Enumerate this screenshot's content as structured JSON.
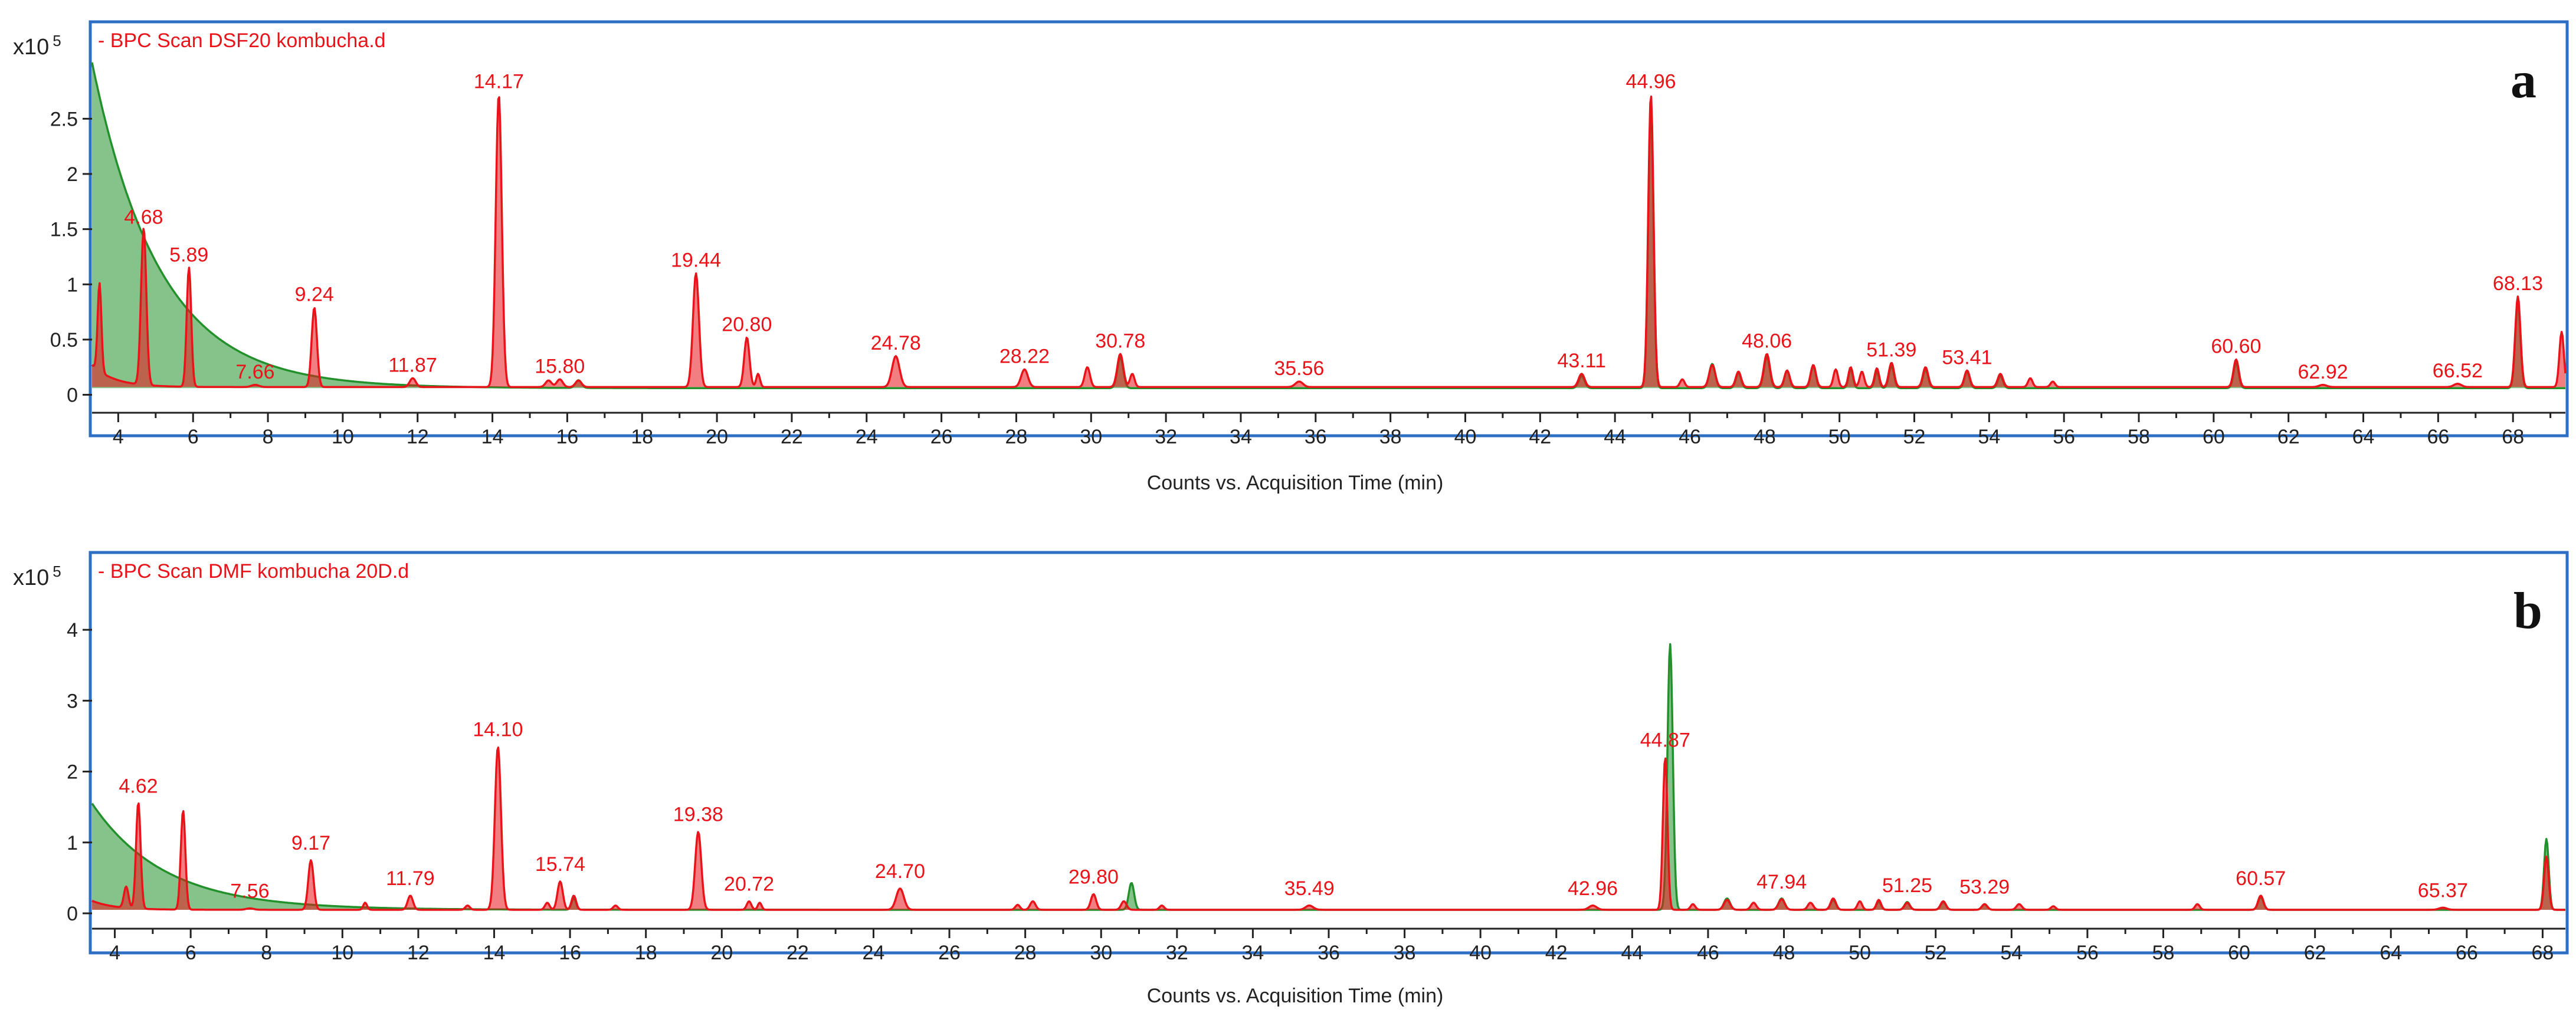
{
  "chart_data": [
    {
      "type": "line",
      "panel_label": "a",
      "legend_text": "- BPC Scan DSF20 kombucha.d",
      "scale_label": "x10",
      "scale_exponent": "5",
      "xlabel": "Counts vs. Acquisition Time (min)",
      "xlim": [
        3.3,
        69.4
      ],
      "ylim": [
        -0.12,
        3.02
      ],
      "x_ticks": [
        4,
        6,
        8,
        10,
        12,
        14,
        16,
        18,
        20,
        22,
        24,
        26,
        28,
        30,
        32,
        34,
        36,
        38,
        40,
        42,
        44,
        46,
        48,
        50,
        52,
        54,
        56,
        58,
        60,
        62,
        64,
        66,
        68
      ],
      "y_ticks": [
        {
          "value": 0,
          "label": "0"
        },
        {
          "value": 0.5,
          "label": "0.5"
        },
        {
          "value": 1,
          "label": "1"
        },
        {
          "value": 1.5,
          "label": "1.5"
        },
        {
          "value": 2,
          "label": "2"
        },
        {
          "value": 2.5,
          "label": "2.5"
        }
      ],
      "peak_labels": [
        {
          "x": 4.68,
          "label": "4.68",
          "y": 1.42
        },
        {
          "x": 5.89,
          "label": "5.89",
          "y": 1.08
        },
        {
          "x": 7.66,
          "label": "7.66",
          "y": 0.02
        },
        {
          "x": 9.24,
          "label": "9.24",
          "y": 0.72
        },
        {
          "x": 11.87,
          "label": "11.87",
          "y": 0.08
        },
        {
          "x": 14.17,
          "label": "14.17",
          "y": 2.65
        },
        {
          "x": 15.8,
          "label": "15.80",
          "y": 0.07
        },
        {
          "x": 19.44,
          "label": "19.44",
          "y": 1.03
        },
        {
          "x": 20.8,
          "label": "20.80",
          "y": 0.45
        },
        {
          "x": 24.78,
          "label": "24.78",
          "y": 0.28
        },
        {
          "x": 28.22,
          "label": "28.22",
          "y": 0.16
        },
        {
          "x": 30.78,
          "label": "30.78",
          "y": 0.3
        },
        {
          "x": 35.56,
          "label": "35.56",
          "y": 0.05
        },
        {
          "x": 43.11,
          "label": "43.11",
          "y": 0.12
        },
        {
          "x": 44.96,
          "label": "44.96",
          "y": 2.65
        },
        {
          "x": 48.06,
          "label": "48.06",
          "y": 0.3
        },
        {
          "x": 51.39,
          "label": "51.39",
          "y": 0.22
        },
        {
          "x": 53.41,
          "label": "53.41",
          "y": 0.15
        },
        {
          "x": 60.6,
          "label": "60.60",
          "y": 0.25
        },
        {
          "x": 62.92,
          "label": "62.92",
          "y": 0.02
        },
        {
          "x": 66.52,
          "label": "66.52",
          "y": 0.03
        },
        {
          "x": 68.13,
          "label": "68.13",
          "y": 0.82
        }
      ],
      "series": [
        {
          "color": "#e8141a",
          "baseline": 0.07,
          "start_shoulder": 0.2,
          "peaks": [
            [
              3.5,
              0.8,
              0.05
            ],
            [
              4.68,
              1.42,
              0.07
            ],
            [
              5.89,
              1.08,
              0.06
            ],
            [
              7.66,
              0.02,
              0.1
            ],
            [
              9.24,
              0.72,
              0.07
            ],
            [
              11.87,
              0.08,
              0.08
            ],
            [
              14.17,
              2.65,
              0.08
            ],
            [
              15.5,
              0.06,
              0.08
            ],
            [
              15.8,
              0.07,
              0.08
            ],
            [
              16.3,
              0.06,
              0.08
            ],
            [
              19.44,
              1.03,
              0.08
            ],
            [
              20.8,
              0.45,
              0.07
            ],
            [
              21.1,
              0.12,
              0.05
            ],
            [
              24.78,
              0.28,
              0.1
            ],
            [
              28.22,
              0.16,
              0.09
            ],
            [
              29.9,
              0.18,
              0.07
            ],
            [
              30.78,
              0.3,
              0.08
            ],
            [
              31.1,
              0.12,
              0.06
            ],
            [
              35.56,
              0.05,
              0.1
            ],
            [
              43.11,
              0.12,
              0.08
            ],
            [
              44.96,
              2.65,
              0.07
            ],
            [
              45.8,
              0.07,
              0.06
            ],
            [
              46.6,
              0.2,
              0.08
            ],
            [
              47.3,
              0.14,
              0.07
            ],
            [
              48.06,
              0.3,
              0.08
            ],
            [
              48.6,
              0.15,
              0.07
            ],
            [
              49.3,
              0.2,
              0.07
            ],
            [
              49.9,
              0.16,
              0.06
            ],
            [
              50.3,
              0.18,
              0.06
            ],
            [
              50.6,
              0.14,
              0.06
            ],
            [
              51.0,
              0.17,
              0.06
            ],
            [
              51.39,
              0.22,
              0.07
            ],
            [
              52.3,
              0.18,
              0.07
            ],
            [
              53.41,
              0.15,
              0.07
            ],
            [
              54.3,
              0.12,
              0.07
            ],
            [
              55.1,
              0.08,
              0.06
            ],
            [
              55.7,
              0.05,
              0.06
            ],
            [
              60.6,
              0.25,
              0.07
            ],
            [
              62.92,
              0.02,
              0.1
            ],
            [
              66.52,
              0.03,
              0.1
            ],
            [
              68.13,
              0.82,
              0.07
            ],
            [
              69.3,
              0.5,
              0.06
            ]
          ]
        },
        {
          "color": "#23912b",
          "baseline": 0.06,
          "decay": {
            "amplitude": 2.95,
            "start": 3.3,
            "tau": 1.8
          },
          "peaks": [
            [
              16.3,
              0.07,
              0.08
            ],
            [
              30.78,
              0.28,
              0.08
            ],
            [
              43.11,
              0.11,
              0.08
            ],
            [
              44.96,
              2.55,
              0.07
            ],
            [
              46.6,
              0.22,
              0.08
            ],
            [
              47.3,
              0.14,
              0.07
            ],
            [
              48.06,
              0.28,
              0.08
            ],
            [
              48.6,
              0.16,
              0.07
            ],
            [
              49.3,
              0.2,
              0.07
            ],
            [
              50.3,
              0.17,
              0.06
            ],
            [
              51.0,
              0.15,
              0.06
            ],
            [
              51.39,
              0.2,
              0.07
            ],
            [
              52.3,
              0.17,
              0.07
            ],
            [
              53.41,
              0.15,
              0.07
            ],
            [
              54.3,
              0.11,
              0.07
            ],
            [
              60.6,
              0.23,
              0.07
            ],
            [
              68.13,
              0.78,
              0.07
            ]
          ]
        }
      ]
    },
    {
      "type": "line",
      "panel_label": "b",
      "legend_text": "- BPC Scan DMF kombucha 20D.d",
      "scale_label": "x10",
      "scale_exponent": "5",
      "xlabel": "Counts vs. Acquisition Time (min)",
      "xlim": [
        3.4,
        68.6
      ],
      "ylim": [
        -0.15,
        4.55
      ],
      "x_ticks": [
        4,
        6,
        8,
        10,
        12,
        14,
        16,
        18,
        20,
        22,
        24,
        26,
        28,
        30,
        32,
        34,
        36,
        38,
        40,
        42,
        44,
        46,
        48,
        50,
        52,
        54,
        56,
        58,
        60,
        62,
        64,
        66,
        68
      ],
      "y_ticks": [
        {
          "value": 0,
          "label": "0"
        },
        {
          "value": 1,
          "label": "1"
        },
        {
          "value": 2,
          "label": "2"
        },
        {
          "value": 3,
          "label": "3"
        },
        {
          "value": 4,
          "label": "4"
        }
      ],
      "peak_labels": [
        {
          "x": 4.62,
          "label": "4.62",
          "y": 1.5
        },
        {
          "x": 7.56,
          "label": "7.56",
          "y": 0.02
        },
        {
          "x": 9.17,
          "label": "9.17",
          "y": 0.7
        },
        {
          "x": 11.79,
          "label": "11.79",
          "y": 0.2
        },
        {
          "x": 14.1,
          "label": "14.10",
          "y": 2.3
        },
        {
          "x": 15.74,
          "label": "15.74",
          "y": 0.4
        },
        {
          "x": 19.38,
          "label": "19.38",
          "y": 1.1
        },
        {
          "x": 20.72,
          "label": "20.72",
          "y": 0.12
        },
        {
          "x": 24.7,
          "label": "24.70",
          "y": 0.3
        },
        {
          "x": 29.8,
          "label": "29.80",
          "y": 0.22
        },
        {
          "x": 35.49,
          "label": "35.49",
          "y": 0.06
        },
        {
          "x": 42.96,
          "label": "42.96",
          "y": 0.06
        },
        {
          "x": 44.87,
          "label": "44.87",
          "y": 2.15
        },
        {
          "x": 47.94,
          "label": "47.94",
          "y": 0.15
        },
        {
          "x": 51.25,
          "label": "51.25",
          "y": 0.1
        },
        {
          "x": 53.29,
          "label": "53.29",
          "y": 0.08
        },
        {
          "x": 60.57,
          "label": "60.57",
          "y": 0.2
        },
        {
          "x": 65.37,
          "label": "65.37",
          "y": 0.03
        }
      ],
      "series": [
        {
          "color": "#e8141a",
          "baseline": 0.05,
          "start_shoulder": 0.15,
          "peaks": [
            [
              4.3,
              0.3,
              0.06
            ],
            [
              4.62,
              1.5,
              0.06
            ],
            [
              5.8,
              1.4,
              0.06
            ],
            [
              7.56,
              0.02,
              0.1
            ],
            [
              9.17,
              0.7,
              0.07
            ],
            [
              10.6,
              0.1,
              0.05
            ],
            [
              11.79,
              0.2,
              0.07
            ],
            [
              13.3,
              0.06,
              0.06
            ],
            [
              14.1,
              2.3,
              0.08
            ],
            [
              15.4,
              0.1,
              0.06
            ],
            [
              15.74,
              0.4,
              0.07
            ],
            [
              16.1,
              0.2,
              0.06
            ],
            [
              17.2,
              0.06,
              0.06
            ],
            [
              19.38,
              1.1,
              0.08
            ],
            [
              20.72,
              0.12,
              0.06
            ],
            [
              21.0,
              0.1,
              0.05
            ],
            [
              24.7,
              0.3,
              0.1
            ],
            [
              27.8,
              0.07,
              0.06
            ],
            [
              28.2,
              0.12,
              0.07
            ],
            [
              29.8,
              0.22,
              0.07
            ],
            [
              30.6,
              0.12,
              0.07
            ],
            [
              31.6,
              0.06,
              0.06
            ],
            [
              35.49,
              0.06,
              0.1
            ],
            [
              42.96,
              0.06,
              0.1
            ],
            [
              44.87,
              2.15,
              0.06
            ],
            [
              45.6,
              0.08,
              0.06
            ],
            [
              46.5,
              0.14,
              0.08
            ],
            [
              47.2,
              0.1,
              0.07
            ],
            [
              47.94,
              0.15,
              0.08
            ],
            [
              48.7,
              0.1,
              0.07
            ],
            [
              49.3,
              0.16,
              0.07
            ],
            [
              50.0,
              0.12,
              0.06
            ],
            [
              50.5,
              0.14,
              0.06
            ],
            [
              51.25,
              0.1,
              0.07
            ],
            [
              52.2,
              0.12,
              0.07
            ],
            [
              53.29,
              0.08,
              0.07
            ],
            [
              54.2,
              0.08,
              0.07
            ],
            [
              55.1,
              0.05,
              0.06
            ],
            [
              58.9,
              0.08,
              0.06
            ],
            [
              60.57,
              0.2,
              0.07
            ],
            [
              65.37,
              0.03,
              0.1
            ],
            [
              68.1,
              0.75,
              0.06
            ]
          ]
        },
        {
          "color": "#23912b",
          "baseline": 0.05,
          "decay": {
            "amplitude": 1.5,
            "start": 3.4,
            "tau": 1.9
          },
          "peaks": [
            [
              16.1,
              0.16,
              0.06
            ],
            [
              30.8,
              0.38,
              0.07
            ],
            [
              45.0,
              3.75,
              0.07
            ],
            [
              46.5,
              0.16,
              0.08
            ],
            [
              47.94,
              0.16,
              0.08
            ],
            [
              49.3,
              0.14,
              0.07
            ],
            [
              50.5,
              0.12,
              0.06
            ],
            [
              51.25,
              0.11,
              0.07
            ],
            [
              52.2,
              0.11,
              0.07
            ],
            [
              53.29,
              0.08,
              0.07
            ],
            [
              60.57,
              0.18,
              0.07
            ],
            [
              68.1,
              1.0,
              0.06
            ]
          ]
        }
      ]
    }
  ]
}
